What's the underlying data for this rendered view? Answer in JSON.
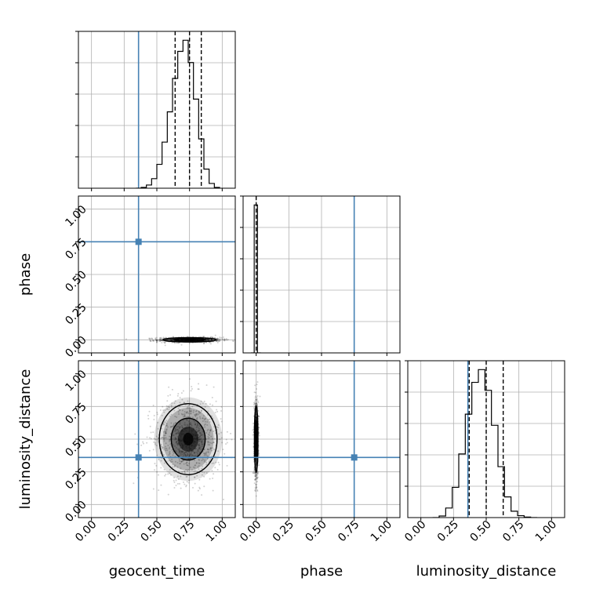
{
  "chart_data": {
    "type": "corner",
    "parameters": [
      "geocent_time",
      "phase",
      "luminosity_distance"
    ],
    "axis_range": [
      -0.1,
      1.1
    ],
    "tick_labels": [
      "0.00",
      "0.25",
      "0.50",
      "0.75",
      "1.00"
    ],
    "tick_values": [
      0.0,
      0.25,
      0.5,
      0.75,
      1.0
    ],
    "grid": true,
    "truths": {
      "geocent_time": 0.36,
      "phase": 0.75,
      "luminosity_distance": 0.36
    },
    "quantiles": {
      "geocent_time": [
        0.64,
        0.75,
        0.84
      ],
      "phase": [
        0.0
      ],
      "luminosity_distance": [
        0.37,
        0.5,
        0.63
      ]
    },
    "colors": {
      "truth": "#4682b4",
      "hist": "#000000",
      "grid": "#b0b0b0"
    },
    "histograms": {
      "geocent_time": {
        "bin_edges": [
          0.34,
          0.38,
          0.42,
          0.46,
          0.5,
          0.54,
          0.58,
          0.62,
          0.66,
          0.7,
          0.74,
          0.78,
          0.82,
          0.86,
          0.9,
          0.94,
          0.98
        ],
        "counts": [
          0,
          5,
          20,
          60,
          150,
          290,
          480,
          690,
          860,
          930,
          790,
          560,
          310,
          120,
          30,
          5
        ]
      },
      "phase": {
        "bin_edges": [
          -0.04,
          -0.015,
          0.01,
          0.035
        ],
        "counts": [
          0,
          1000,
          0
        ]
      },
      "luminosity_distance": {
        "bin_edges": [
          0.09,
          0.14,
          0.19,
          0.24,
          0.29,
          0.34,
          0.39,
          0.44,
          0.49,
          0.54,
          0.59,
          0.64,
          0.69,
          0.74,
          0.79,
          0.84,
          0.89
        ],
        "counts": [
          0,
          10,
          60,
          190,
          400,
          650,
          850,
          930,
          800,
          580,
          320,
          130,
          40,
          12,
          3,
          0
        ]
      }
    },
    "joint": {
      "geocent_time_vs_phase": {
        "center": [
          0.75,
          0.0
        ],
        "spread": [
          0.12,
          0.01
        ]
      },
      "geocent_time_vs_luminosity_distance": {
        "center": [
          0.74,
          0.5
        ],
        "spread": [
          0.13,
          0.16
        ]
      },
      "phase_vs_luminosity_distance": {
        "center": [
          0.0,
          0.5
        ],
        "spread": [
          0.008,
          0.15
        ]
      }
    }
  }
}
